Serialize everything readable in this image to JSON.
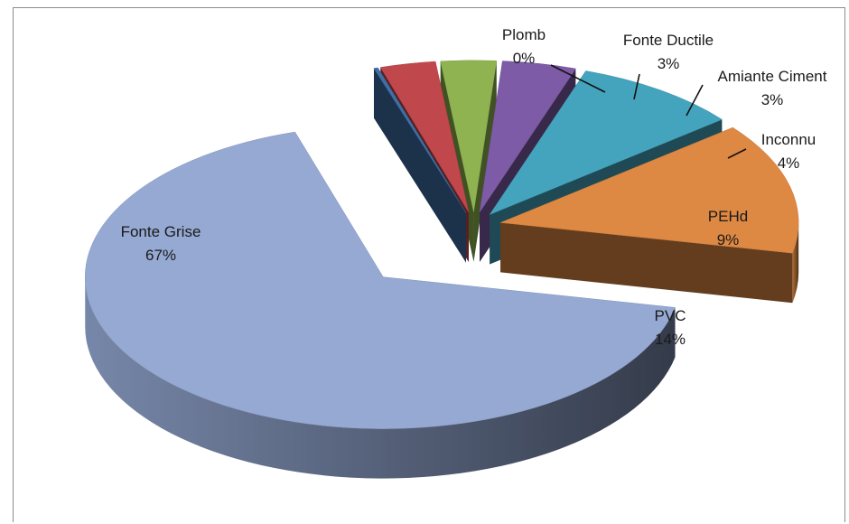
{
  "chart_data": {
    "type": "pie",
    "style": "3d-exploded",
    "title": "",
    "legend": "none",
    "slices": [
      {
        "label": "Fonte Grise",
        "value": 67,
        "value_label": "67%",
        "color": "#95a9d3"
      },
      {
        "label": "PVC",
        "value": 14,
        "value_label": "14%",
        "color": "#dd8843"
      },
      {
        "label": "PEHd",
        "value": 9,
        "value_label": "9%",
        "color": "#44a4bd"
      },
      {
        "label": "Inconnu",
        "value": 4,
        "value_label": "4%",
        "color": "#7d5ba6"
      },
      {
        "label": "Amiante Ciment",
        "value": 3,
        "value_label": "3%",
        "color": "#8fb350"
      },
      {
        "label": "Fonte Ductile",
        "value": 3,
        "value_label": "3%",
        "color": "#c0474b"
      },
      {
        "label": "Plomb",
        "value": 0,
        "value_label": "0%",
        "color": "#3f6fa7"
      }
    ]
  }
}
